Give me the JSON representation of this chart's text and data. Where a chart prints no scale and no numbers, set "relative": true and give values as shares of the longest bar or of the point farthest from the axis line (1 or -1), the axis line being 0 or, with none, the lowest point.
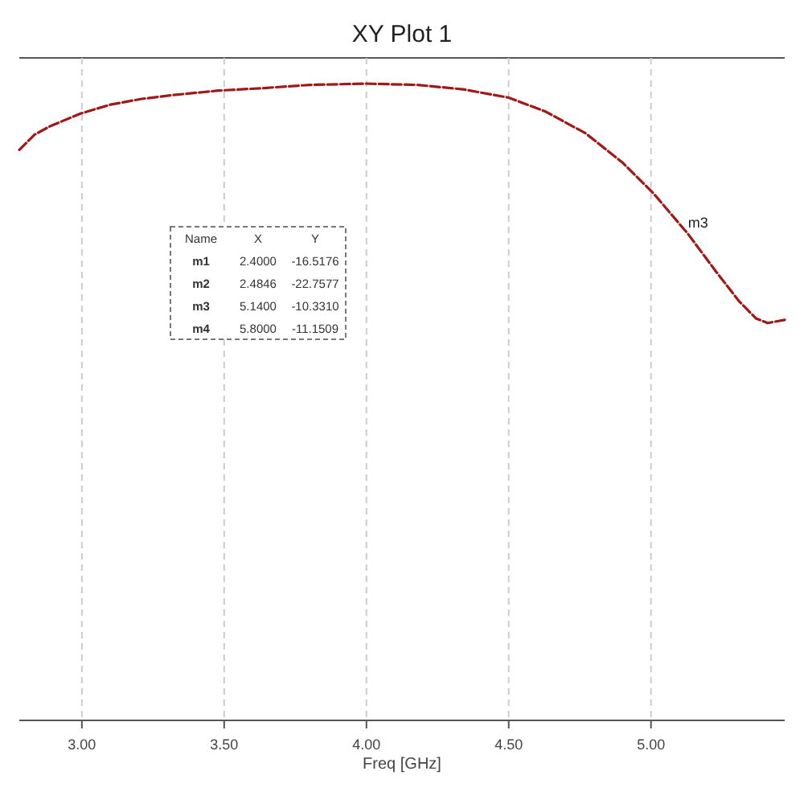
{
  "chart_data": {
    "type": "line",
    "title": "XY Plot 1",
    "xlabel": "Freq [GHz]",
    "relative": true,
    "xlim": [
      2.78,
      5.47
    ],
    "xticks": [
      {
        "value": 3,
        "label": "3.00"
      },
      {
        "value": 3.5,
        "label": "3.50"
      },
      {
        "value": 4,
        "label": "4.00"
      },
      {
        "value": 4.5,
        "label": "4.50"
      },
      {
        "value": 5,
        "label": "5.00"
      }
    ],
    "grid": "x",
    "line_style": "dashed",
    "series": [
      {
        "color": "#a01818",
        "x": [
          2.78,
          2.834,
          2.888,
          2.995,
          3.1,
          3.21,
          3.32,
          3.48,
          3.64,
          3.8,
          4.0,
          4.18,
          4.34,
          4.5,
          4.63,
          4.77,
          4.9,
          5.01,
          5.13,
          5.23,
          5.31,
          5.37,
          5.41,
          5.47
        ],
        "values": [
          0.896,
          0.92,
          0.933,
          0.953,
          0.967,
          0.976,
          0.982,
          0.989,
          0.993,
          0.998,
          1.0,
          0.998,
          0.991,
          0.978,
          0.956,
          0.922,
          0.876,
          0.827,
          0.764,
          0.704,
          0.658,
          0.631,
          0.624,
          0.629
        ]
      }
    ],
    "annotations": [
      {
        "text": "m3",
        "x": 5.13,
        "y": 0.764
      },
      "Name",
      "X",
      "Y",
      "m1",
      "2.4000",
      "-16.5176",
      "m2",
      "2.4846",
      "-22.7577",
      "m3",
      "5.1400",
      "-10.3310",
      "m4",
      "5.8000",
      "-11.1509"
    ]
  }
}
